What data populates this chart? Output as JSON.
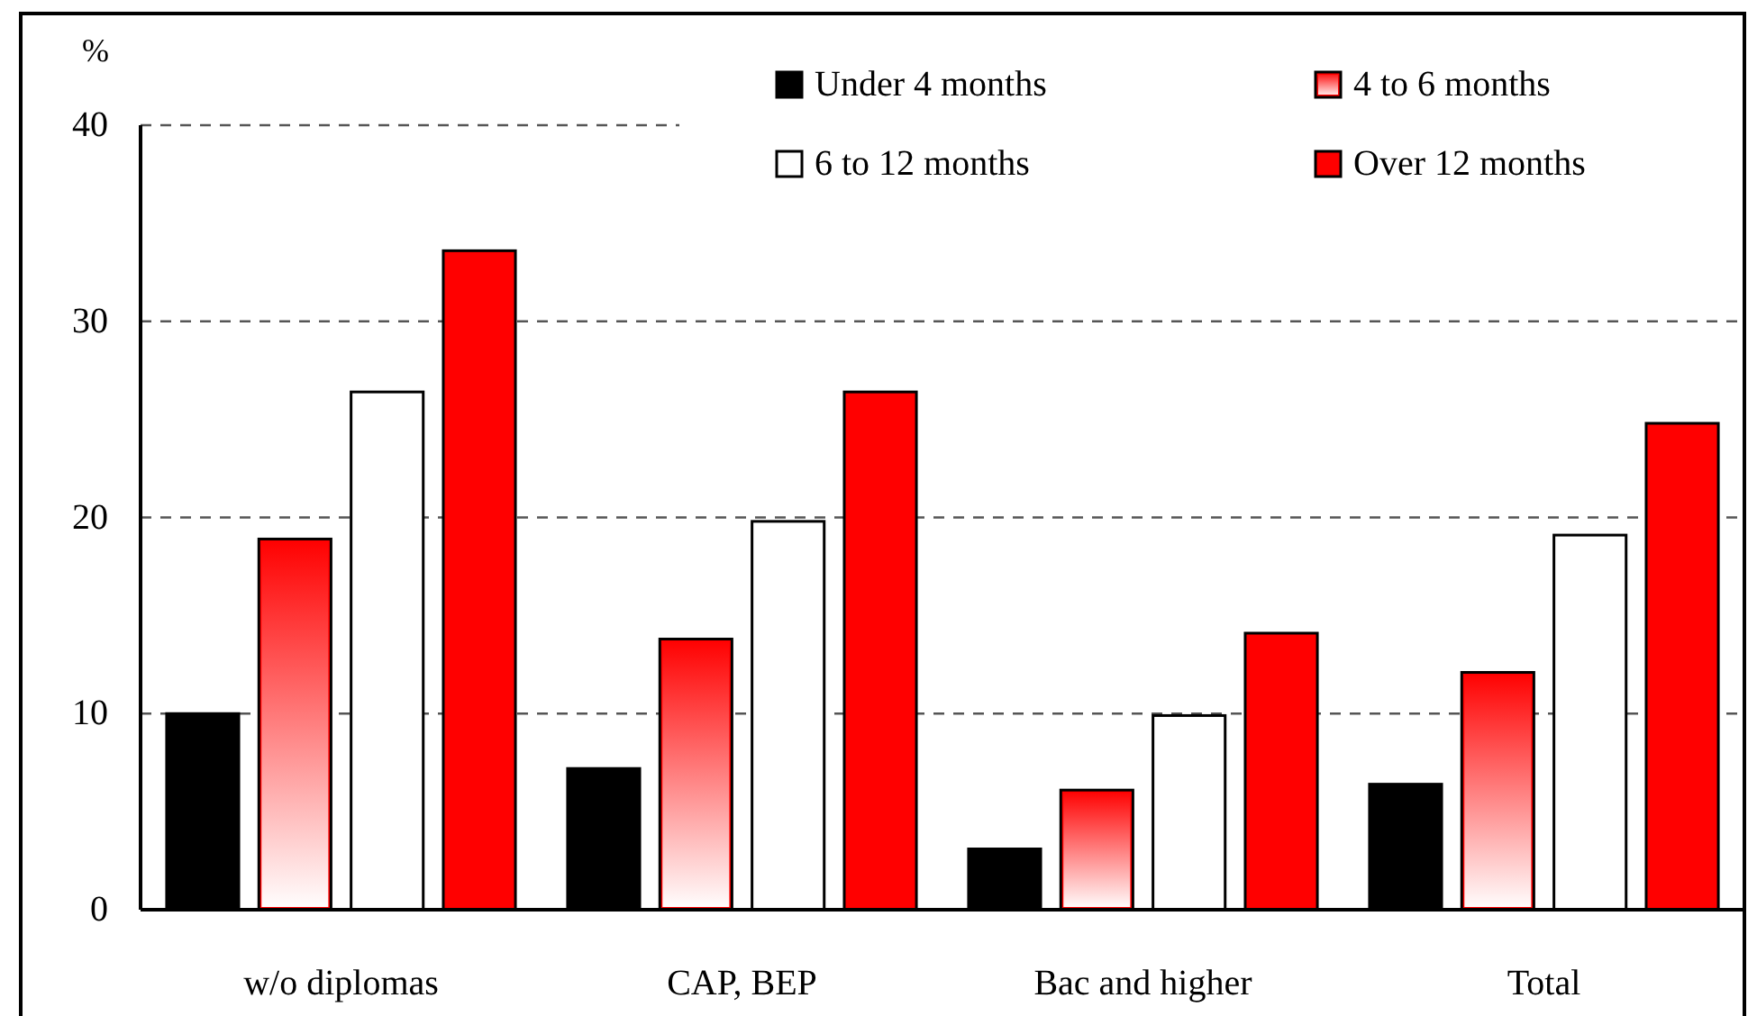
{
  "chart_data": {
    "type": "bar",
    "ylabel": "%",
    "categories": [
      "w/o diplomas",
      "CAP, BEP",
      "Bac and higher",
      "Total"
    ],
    "series": [
      {
        "name": "Under 4 months",
        "color": "#000000",
        "values": [
          10.0,
          7.2,
          3.1,
          6.4
        ]
      },
      {
        "name": "4 to 6 months",
        "color": "#ff0000",
        "values": [
          18.9,
          13.8,
          6.1,
          12.1
        ]
      },
      {
        "name": "6 to 12 months",
        "color": "#ffffff",
        "values": [
          26.4,
          19.8,
          9.9,
          19.1
        ]
      },
      {
        "name": "Over 12 months",
        "color": "#ff0000",
        "values": [
          33.6,
          26.4,
          14.1,
          24.8
        ]
      }
    ],
    "ylim": [
      0,
      40
    ],
    "yticks": [
      0,
      10,
      20,
      30,
      40
    ],
    "grid": "y",
    "legend": "top right"
  }
}
